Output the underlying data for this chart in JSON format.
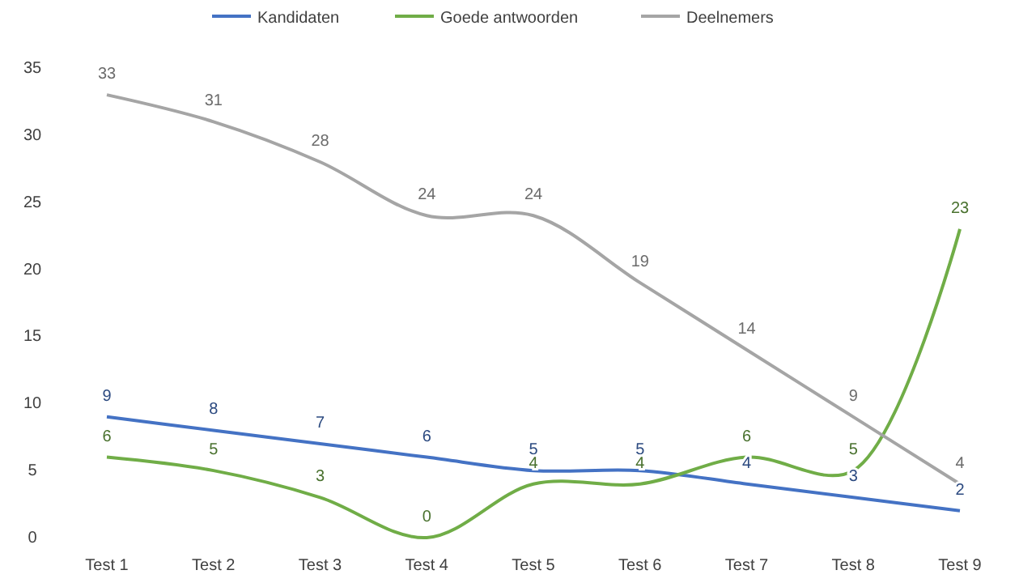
{
  "chart_data": {
    "type": "line",
    "categories": [
      "Test 1",
      "Test 2",
      "Test 3",
      "Test 4",
      "Test 5",
      "Test 6",
      "Test 7",
      "Test 8",
      "Test 9"
    ],
    "series": [
      {
        "name": "Kandidaten",
        "color": "#4472c4",
        "values": [
          9,
          8,
          7,
          6,
          5,
          5,
          4,
          3,
          2
        ]
      },
      {
        "name": "Goede antwoorden",
        "color": "#70ad47",
        "values": [
          6,
          5,
          3,
          0,
          4,
          4,
          6,
          5,
          23
        ]
      },
      {
        "name": "Deelnemers",
        "color": "#a5a5a5",
        "values": [
          33,
          31,
          28,
          24,
          24,
          19,
          14,
          9,
          4
        ]
      }
    ],
    "ylim": [
      0,
      35
    ],
    "yticks": [
      0,
      5,
      10,
      15,
      20,
      25,
      30,
      35
    ],
    "grid": false,
    "legend": "top",
    "data_labels": true,
    "marker": "none",
    "line_style": "solid"
  }
}
